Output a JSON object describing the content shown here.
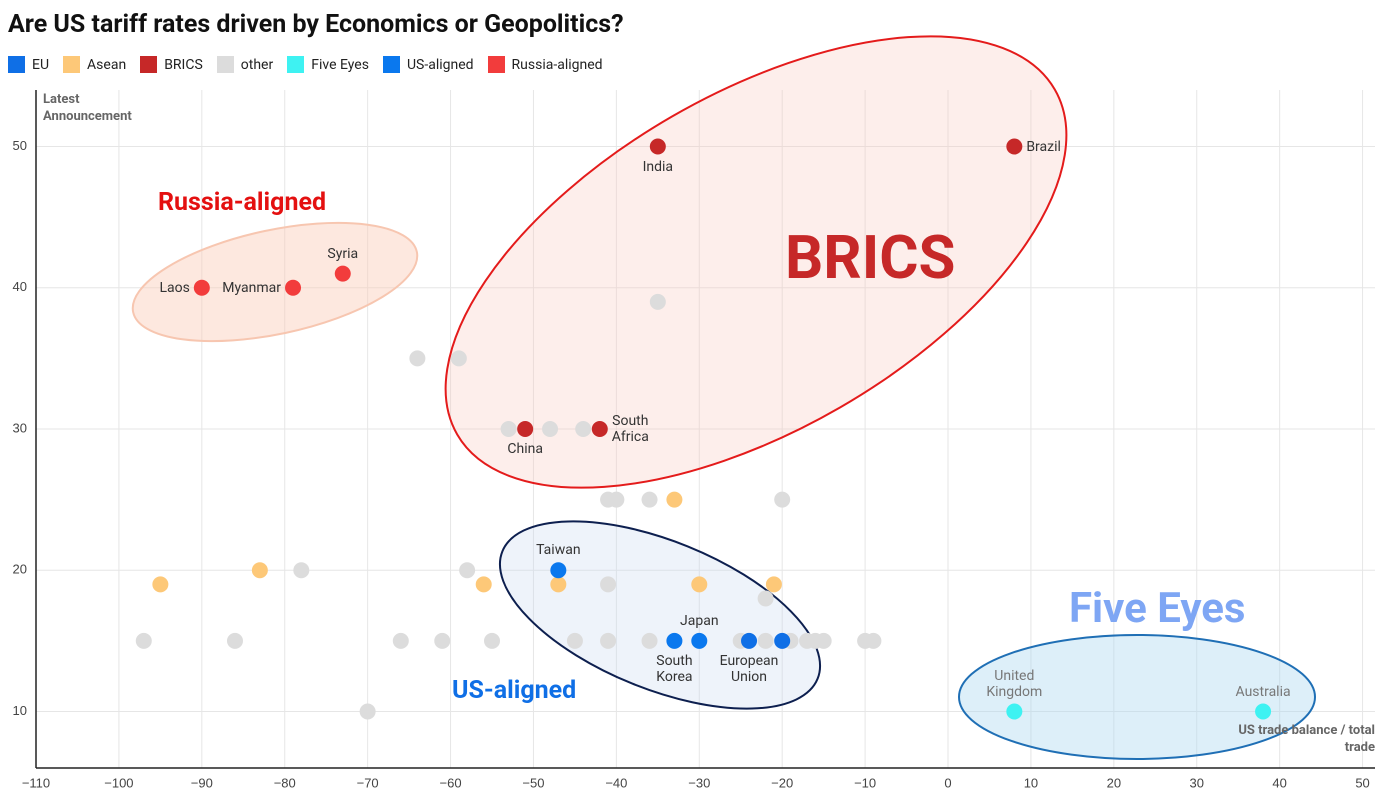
{
  "chart_data": {
    "type": "scatter",
    "title": "Are US tariff rates driven by Economics or Geopolitics?",
    "x_label": "US trade balance / total trade",
    "y_label": "Latest Announcement",
    "xlim": [
      -110,
      51.5
    ],
    "ylim": [
      6,
      54
    ],
    "xticks": [
      {
        "value": -110,
        "label": "−110"
      },
      {
        "value": -100,
        "label": "−100"
      },
      {
        "value": -90,
        "label": "−90"
      },
      {
        "value": -80,
        "label": "−80"
      },
      {
        "value": -70,
        "label": "−70"
      },
      {
        "value": -60,
        "label": "−60"
      },
      {
        "value": -50,
        "label": "−50"
      },
      {
        "value": -40,
        "label": "−40"
      },
      {
        "value": -30,
        "label": "−30"
      },
      {
        "value": -20,
        "label": "−20"
      },
      {
        "value": -10,
        "label": "−10"
      },
      0,
      10,
      20,
      30,
      40,
      50
    ],
    "yticks": [
      10,
      20,
      30,
      40,
      50
    ],
    "grid": true,
    "annotations": [
      "BRICS",
      "Five Eyes",
      "US-aligned",
      "Russia-aligned"
    ],
    "series": [
      {
        "name": "EU",
        "color": "#0f6fe6",
        "x": [
          -24,
          -20
        ],
        "values": [
          15,
          15
        ],
        "labels": [
          "European Union",
          null
        ]
      },
      {
        "name": "Asean",
        "color": "#fdc878",
        "x": [
          -95,
          -83,
          -56,
          -47,
          -33,
          -30,
          -21
        ],
        "values": [
          19,
          20,
          19,
          19,
          25,
          19,
          19
        ],
        "labels": [
          null,
          null,
          null,
          null,
          null,
          null,
          null
        ]
      },
      {
        "name": "BRICS",
        "color": "#c62828",
        "x": [
          -35,
          8,
          -51,
          -42
        ],
        "values": [
          50,
          50,
          30,
          30
        ],
        "labels": [
          "India",
          "Brazil",
          "China",
          "South Africa"
        ]
      },
      {
        "name": "other",
        "color": "#dcdcdc",
        "x": [
          -35,
          -64,
          -59,
          -53,
          -48,
          -44,
          -41,
          -40,
          -36,
          -20,
          -78,
          -58,
          -41,
          -22,
          -97,
          -86,
          -66,
          -61,
          -55,
          -45,
          -41,
          -36,
          -25,
          -22,
          -19,
          -17,
          -16,
          -15,
          -10,
          -9,
          -70
        ],
        "values": [
          39,
          35,
          35,
          30,
          30,
          30,
          25,
          25,
          25,
          25,
          20,
          20,
          19,
          18,
          15,
          15,
          15,
          15,
          15,
          15,
          15,
          15,
          15,
          15,
          15,
          15,
          15,
          15,
          15,
          15,
          10
        ],
        "labels": [
          null,
          null,
          null,
          null,
          null,
          null,
          null,
          null,
          null,
          null,
          null,
          null,
          null,
          null,
          null,
          null,
          null,
          null,
          null,
          null,
          null,
          null,
          null,
          null,
          null,
          null,
          null,
          null,
          null,
          null,
          null
        ]
      },
      {
        "name": "Five Eyes",
        "color": "#3ef2f2",
        "x": [
          8,
          38
        ],
        "values": [
          10,
          10
        ],
        "labels": [
          "United Kingdom",
          "Australia"
        ]
      },
      {
        "name": "US-aligned",
        "color": "#0a78ee",
        "x": [
          -47,
          -33,
          -30
        ],
        "values": [
          20,
          15,
          15
        ],
        "labels": [
          "Taiwan",
          "South Korea",
          "Japan"
        ]
      },
      {
        "name": "Russia-aligned",
        "color": "#f23c3c",
        "x": [
          -90,
          -79,
          -73
        ],
        "values": [
          40,
          40,
          41
        ],
        "labels": [
          "Laos",
          "Myanmar",
          "Syria"
        ]
      }
    ]
  }
}
